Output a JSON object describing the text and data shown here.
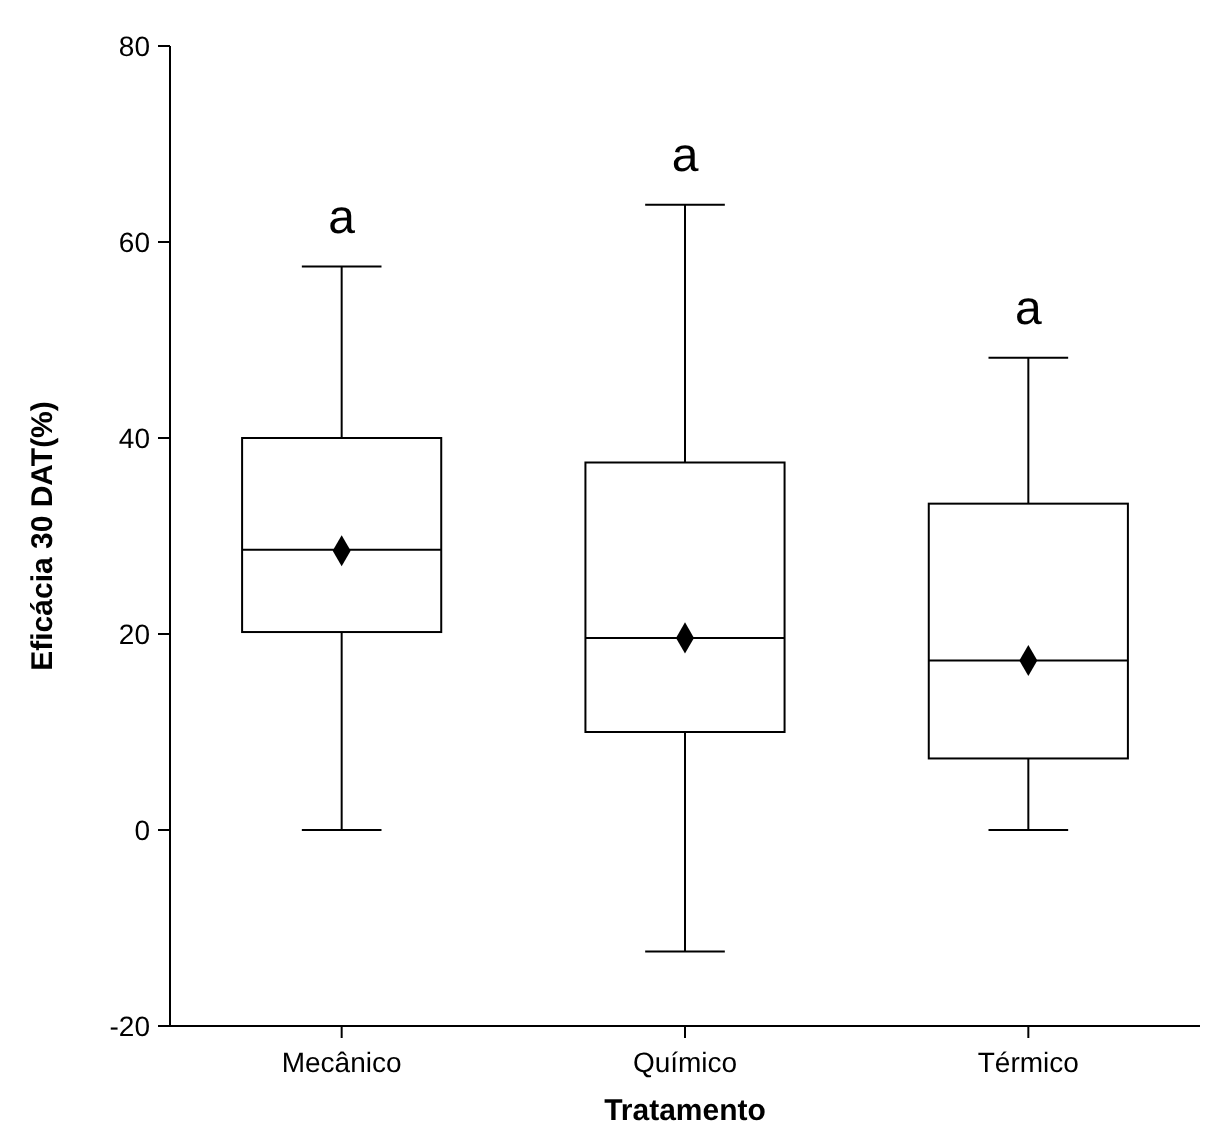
{
  "chart_data": {
    "type": "box",
    "xlabel": "Tratamento",
    "ylabel": "Eficácia 30 DAT(%)",
    "categories": [
      "Mecânico",
      "Químico",
      "Térmico"
    ],
    "boxes": [
      {
        "low": 0,
        "q1": 20.2,
        "median": 28.6,
        "q3": 40,
        "high": 57.5,
        "mean": 28.5
      },
      {
        "low": -12.4,
        "q1": 10,
        "median": 19.6,
        "q3": 37.5,
        "high": 63.8,
        "mean": 19.6
      },
      {
        "low": 0,
        "q1": 7.3,
        "median": 17.3,
        "q3": 33.3,
        "high": 48.2,
        "mean": 17.3
      }
    ],
    "ylim": [
      -20,
      80
    ],
    "yticks": [
      -20,
      0,
      20,
      40,
      60,
      80
    ],
    "grid": false,
    "marker": "diamond",
    "color": "#ffffff",
    "annotations": [
      "a",
      "a",
      "a"
    ]
  }
}
